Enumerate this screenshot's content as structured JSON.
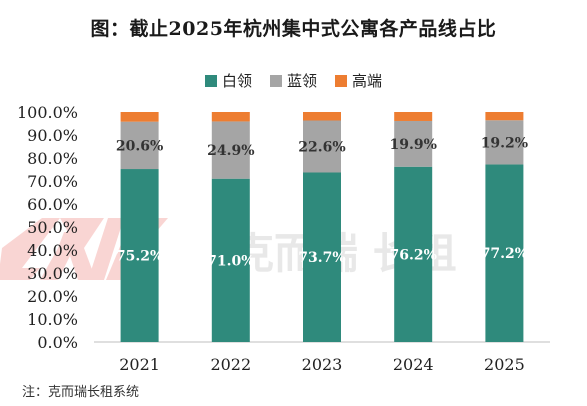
{
  "chart_data": {
    "type": "bar",
    "stacked": true,
    "title": "图：截止2025年杭州集中式公寓各产品线占比",
    "categories": [
      "2021",
      "2022",
      "2023",
      "2024",
      "2025"
    ],
    "series": [
      {
        "name": "白领",
        "color": "#2f8a7c",
        "values": [
          75.2,
          71.0,
          73.7,
          76.2,
          77.2
        ],
        "labels": [
          "75.2%",
          "71.0%",
          "73.7%",
          "76.2%",
          "77.2%"
        ],
        "label_color": "#ffffff"
      },
      {
        "name": "蓝领",
        "color": "#a5a5a5",
        "values": [
          20.6,
          24.9,
          22.6,
          19.9,
          19.2
        ],
        "labels": [
          "20.6%",
          "24.9%",
          "22.6%",
          "19.9%",
          "19.2%"
        ],
        "label_color": "#333333"
      },
      {
        "name": "高端",
        "color": "#ed7d31",
        "values": [
          4.2,
          4.1,
          3.7,
          3.9,
          3.6
        ]
      }
    ],
    "ylim": [
      0,
      100
    ],
    "yticks": [
      "0.0%",
      "10.0%",
      "20.0%",
      "30.0%",
      "40.0%",
      "50.0%",
      "60.0%",
      "70.0%",
      "80.0%",
      "90.0%",
      "100.0%"
    ],
    "grid": false,
    "legend_position": "top"
  },
  "watermark": {
    "logo_text": "CRIC",
    "brand_text": "克而瑞 长租"
  },
  "note": "注：克而瑞长租系统"
}
